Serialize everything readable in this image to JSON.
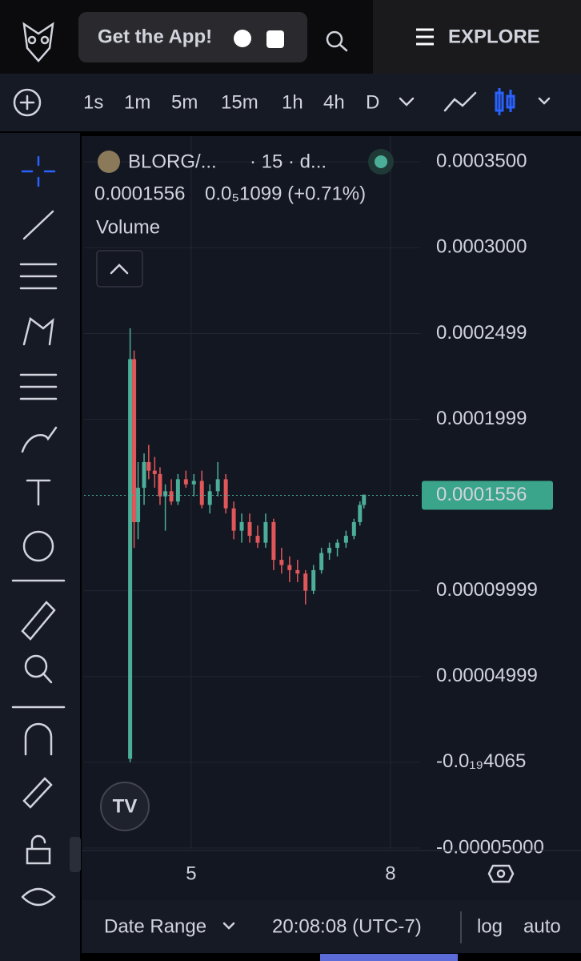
{
  "header": {
    "app_button": "Get the App!",
    "explore": "EXPLORE"
  },
  "toolbar": {
    "intervals": [
      "1s",
      "1m",
      "5m",
      "15m",
      "1h",
      "4h",
      "D"
    ],
    "active_interval": 3
  },
  "legend": {
    "symbol": "BLORG/...",
    "symbol_info": "· 15 · d...",
    "change_text": "0.0₅1099 (+0.71%)",
    "volume_label": "Volume"
  },
  "footer": {
    "date_range": "Date Range",
    "time": "20:08:08 (UTC-7)",
    "log": "log",
    "auto": "auto"
  },
  "chart_data": {
    "type": "candlestick",
    "up_color": "#4cae98",
    "down_color": "#e0575a",
    "grid": true,
    "last_price": 0.0001556,
    "xlim": [
      3.386,
      8.446
    ],
    "xticks": [
      5,
      8
    ],
    "ylim": [
      -5.05e-05,
      0.000365
    ],
    "yticks": [
      {
        "value": -5e-05,
        "label": "-0.00005000"
      },
      {
        "value": -4.065e-20,
        "label": "-0.0₁₉4065"
      },
      {
        "value": 4.999e-05,
        "label": "0.00004999"
      },
      {
        "value": 9.999e-05,
        "label": "0.00009999"
      },
      {
        "value": 0.0001999,
        "label": "0.0001999"
      },
      {
        "value": 0.0002499,
        "label": "0.0002499"
      },
      {
        "value": 0.0003,
        "label": "0.0003000"
      },
      {
        "value": 0.00035,
        "label": "0.0003500"
      }
    ],
    "x": [
      4.08,
      4.14,
      4.2,
      4.29,
      4.36,
      4.45,
      4.53,
      4.61,
      4.7,
      4.8,
      4.92,
      5.04,
      5.16,
      5.28,
      5.4,
      5.52,
      5.64,
      5.76,
      5.88,
      6.0,
      6.12,
      6.24,
      6.36,
      6.48,
      6.6,
      6.72,
      6.84,
      6.96,
      7.08,
      7.2,
      7.33,
      7.45,
      7.54,
      7.6
    ],
    "open": [
      2e-06,
      0.000235,
      0.00014,
      0.00016,
      0.000175,
      0.00017,
      0.000168,
      0.000155,
      0.000158,
      0.000152,
      0.000165,
      0.000162,
      0.000164,
      0.00015,
      0.000158,
      0.000165,
      0.000148,
      0.000135,
      0.00014,
      0.000132,
      0.000128,
      0.00014,
      0.000118,
      0.000115,
      0.000112,
      0.00011,
      0.0001,
      0.000112,
      0.000122,
      0.000125,
      0.000128,
      0.000132,
      0.00014,
      0.00015
    ],
    "high": [
      0.000253,
      0.00024,
      0.000175,
      0.00018,
      0.000185,
      0.000178,
      0.000172,
      0.000162,
      0.000165,
      0.000168,
      0.00017,
      0.000168,
      0.00017,
      0.000162,
      0.000175,
      0.000168,
      0.000152,
      0.000145,
      0.000145,
      0.000138,
      0.000145,
      0.000142,
      0.000125,
      0.00012,
      0.000118,
      0.000112,
      0.000115,
      0.000125,
      0.000128,
      0.00013,
      0.000135,
      0.000142,
      0.000152,
      0.000156
    ],
    "low": [
      0.0,
      0.000125,
      0.00013,
      0.00015,
      0.000165,
      0.00016,
      0.00015,
      0.000135,
      0.00015,
      0.00015,
      0.00016,
      0.000155,
      0.000148,
      0.000145,
      0.000155,
      0.000145,
      0.00013,
      0.000128,
      0.000128,
      0.000125,
      0.000125,
      0.000112,
      0.00011,
      0.000105,
      0.000105,
      9.2e-05,
      9.8e-05,
      0.00011,
      0.000118,
      0.00012,
      0.000125,
      0.00013,
      0.000138,
      0.000148
    ],
    "close": [
      0.000235,
      0.00014,
      0.00016,
      0.000175,
      0.00017,
      0.000168,
      0.000155,
      0.000158,
      0.000152,
      0.000165,
      0.000162,
      0.000164,
      0.00015,
      0.000158,
      0.000165,
      0.000148,
      0.000135,
      0.00014,
      0.000132,
      0.000128,
      0.00014,
      0.000118,
      0.000115,
      0.000112,
      0.00011,
      0.0001,
      0.000112,
      0.000122,
      0.000125,
      0.000128,
      0.000132,
      0.00014,
      0.00015,
      0.000156
    ]
  }
}
